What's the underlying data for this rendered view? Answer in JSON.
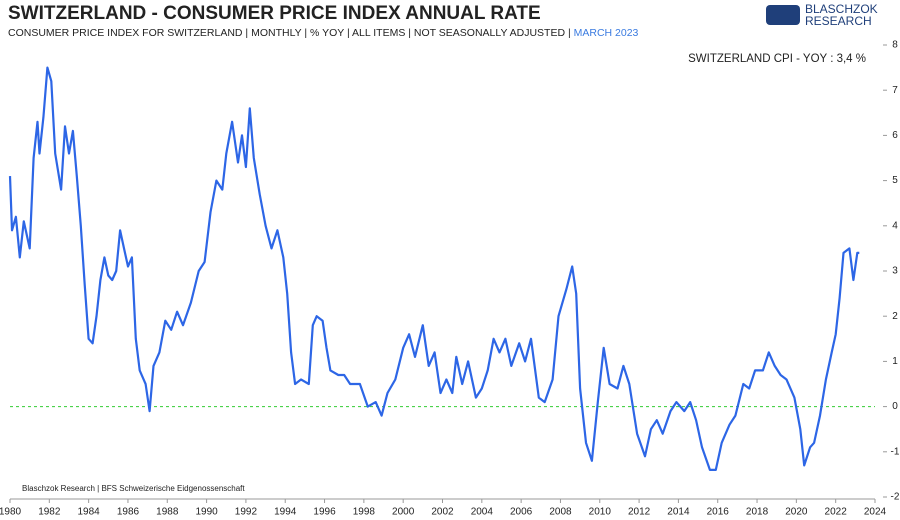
{
  "chart_data": {
    "type": "line",
    "title": "SWITZERLAND - CONSUMER PRICE INDEX ANNUAL RATE",
    "subtitle": "CONSUMER PRICE INDEX FOR SWITZERLAND | MONTHLY | % YOY | ALL ITEMS | NOT SEASONALLY ADJUSTED |",
    "subtitle_date": "MARCH 2023",
    "annotation": "SWITZERLAND CPI - YOY : 3,4 %",
    "source": "Blaschzok Research  |  BFS Schweizerische  Eidgenossenschaft",
    "logo": [
      "BLASCHZOK",
      "RESEARCH"
    ],
    "x": [
      1980.0,
      1980.1,
      1980.3,
      1980.5,
      1980.7,
      1981.0,
      1981.2,
      1981.4,
      1981.5,
      1981.7,
      1981.9,
      1982.1,
      1982.3,
      1982.6,
      1982.8,
      1983.0,
      1983.2,
      1983.4,
      1983.6,
      1983.8,
      1984.0,
      1984.2,
      1984.4,
      1984.6,
      1984.8,
      1985.0,
      1985.2,
      1985.4,
      1985.6,
      1985.8,
      1986.0,
      1986.2,
      1986.4,
      1986.6,
      1986.9,
      1987.1,
      1987.3,
      1987.6,
      1987.9,
      1988.2,
      1988.5,
      1988.8,
      1989.2,
      1989.6,
      1989.9,
      1990.2,
      1990.5,
      1990.8,
      1991.0,
      1991.3,
      1991.6,
      1991.8,
      1992.0,
      1992.2,
      1992.4,
      1992.7,
      1993.0,
      1993.3,
      1993.6,
      1993.9,
      1994.1,
      1994.3,
      1994.5,
      1994.8,
      1995.2,
      1995.4,
      1995.6,
      1995.9,
      1996.1,
      1996.3,
      1996.7,
      1997.0,
      1997.3,
      1997.8,
      1998.2,
      1998.6,
      1998.9,
      1999.2,
      1999.6,
      2000.0,
      2000.3,
      2000.6,
      2001.0,
      2001.3,
      2001.6,
      2001.9,
      2002.2,
      2002.5,
      2002.7,
      2003.0,
      2003.3,
      2003.7,
      2004.0,
      2004.3,
      2004.6,
      2004.9,
      2005.2,
      2005.5,
      2005.9,
      2006.2,
      2006.5,
      2006.9,
      2007.2,
      2007.6,
      2007.9,
      2008.3,
      2008.6,
      2008.8,
      2009.0,
      2009.3,
      2009.6,
      2009.9,
      2010.2,
      2010.5,
      2010.9,
      2011.2,
      2011.5,
      2011.9,
      2012.3,
      2012.6,
      2012.9,
      2013.2,
      2013.6,
      2013.9,
      2014.3,
      2014.6,
      2014.9,
      2015.2,
      2015.6,
      2015.9,
      2016.2,
      2016.6,
      2016.9,
      2017.3,
      2017.6,
      2017.9,
      2018.3,
      2018.6,
      2018.9,
      2019.2,
      2019.5,
      2019.9,
      2020.2,
      2020.4,
      2020.7,
      2020.9,
      2021.2,
      2021.5,
      2021.8,
      2022.0,
      2022.2,
      2022.4,
      2022.7,
      2022.9,
      2023.1,
      2023.2
    ],
    "series": [
      {
        "name": "SWITZERLAND CPI - YOY",
        "color": "#2d66e6",
        "values": [
          5.1,
          3.9,
          4.2,
          3.3,
          4.1,
          3.5,
          5.5,
          6.3,
          5.6,
          6.4,
          7.5,
          7.2,
          5.6,
          4.8,
          6.2,
          5.6,
          6.1,
          5.1,
          4.0,
          2.7,
          1.5,
          1.4,
          2.0,
          2.8,
          3.3,
          2.9,
          2.8,
          3.0,
          3.9,
          3.5,
          3.1,
          3.3,
          1.5,
          0.8,
          0.5,
          -0.1,
          0.9,
          1.2,
          1.9,
          1.7,
          2.1,
          1.8,
          2.3,
          3.0,
          3.2,
          4.3,
          5.0,
          4.8,
          5.6,
          6.3,
          5.4,
          6.0,
          5.3,
          6.6,
          5.5,
          4.7,
          4.0,
          3.5,
          3.9,
          3.3,
          2.5,
          1.2,
          0.5,
          0.6,
          0.5,
          1.8,
          2.0,
          1.9,
          1.3,
          0.8,
          0.7,
          0.7,
          0.5,
          0.5,
          0.0,
          0.1,
          -0.2,
          0.3,
          0.6,
          1.3,
          1.6,
          1.1,
          1.8,
          0.9,
          1.2,
          0.3,
          0.6,
          0.3,
          1.1,
          0.5,
          1.0,
          0.2,
          0.4,
          0.8,
          1.5,
          1.2,
          1.5,
          0.9,
          1.4,
          1.0,
          1.5,
          0.2,
          0.1,
          0.6,
          2.0,
          2.6,
          3.1,
          2.5,
          0.4,
          -0.8,
          -1.2,
          0.1,
          1.3,
          0.5,
          0.4,
          0.9,
          0.5,
          -0.6,
          -1.1,
          -0.5,
          -0.3,
          -0.6,
          -0.1,
          0.1,
          -0.1,
          0.1,
          -0.3,
          -0.9,
          -1.4,
          -1.4,
          -0.8,
          -0.4,
          -0.2,
          0.5,
          0.4,
          0.8,
          0.8,
          1.2,
          0.9,
          0.7,
          0.6,
          0.2,
          -0.5,
          -1.3,
          -0.9,
          -0.8,
          -0.2,
          0.6,
          1.2,
          1.6,
          2.4,
          3.4,
          3.5,
          2.8,
          3.4,
          3.4
        ]
      }
    ],
    "xlim": [
      1980,
      2024
    ],
    "xticks": [
      1980,
      1982,
      1984,
      1986,
      1988,
      1990,
      1992,
      1994,
      1996,
      1998,
      2000,
      2002,
      2004,
      2006,
      2008,
      2010,
      2012,
      2014,
      2016,
      2018,
      2020,
      2022,
      2024
    ],
    "ylim": [
      -2,
      8
    ],
    "yticks": [
      -2,
      -1,
      0,
      1,
      2,
      3,
      4,
      5,
      6,
      7,
      8
    ],
    "reference_line": {
      "value": 0,
      "color": "#33cc33"
    },
    "accent_color": "#3a7be0"
  }
}
